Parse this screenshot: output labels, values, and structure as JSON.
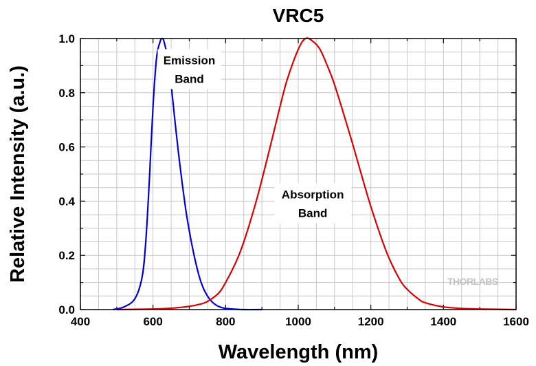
{
  "chart_data": {
    "type": "line",
    "title": "VRC5",
    "xlabel": "Wavelength (nm)",
    "ylabel": "Relative Intensity (a.u.)",
    "xlim": [
      400,
      1600
    ],
    "ylim": [
      0,
      1.0
    ],
    "x_ticks": [
      "400",
      "600",
      "800",
      "1000",
      "1200",
      "1400",
      "1600"
    ],
    "y_ticks": [
      "0.0",
      "0.2",
      "0.4",
      "0.6",
      "0.8",
      "1.0"
    ],
    "grid": true,
    "series": [
      {
        "color": "#0000dd",
        "x": [
          490,
          520,
          550,
          570,
          580,
          590,
          600,
          610,
          620,
          625,
          630,
          640,
          650,
          660,
          670,
          680,
          690,
          700,
          710,
          720,
          730,
          740,
          750,
          760,
          770,
          780,
          790,
          800,
          820,
          850,
          900
        ],
        "y": [
          0.0,
          0.01,
          0.04,
          0.12,
          0.25,
          0.48,
          0.75,
          0.93,
          0.99,
          1.0,
          0.99,
          0.93,
          0.83,
          0.7,
          0.58,
          0.47,
          0.37,
          0.29,
          0.22,
          0.16,
          0.11,
          0.075,
          0.05,
          0.032,
          0.02,
          0.012,
          0.007,
          0.004,
          0.002,
          0.0,
          0.0
        ]
      },
      {
        "color": "#dd0000",
        "x": [
          500,
          600,
          650,
          700,
          730,
          750,
          780,
          800,
          830,
          850,
          880,
          900,
          930,
          950,
          970,
          1000,
          1020,
          1040,
          1060,
          1080,
          1100,
          1130,
          1150,
          1180,
          1200,
          1230,
          1250,
          1280,
          1300,
          1330,
          1350,
          1400,
          1450,
          1500,
          1550,
          1600
        ],
        "y": [
          0.0,
          0.002,
          0.005,
          0.012,
          0.02,
          0.03,
          0.06,
          0.1,
          0.18,
          0.25,
          0.38,
          0.48,
          0.64,
          0.75,
          0.85,
          0.96,
          1.0,
          0.99,
          0.96,
          0.9,
          0.83,
          0.7,
          0.61,
          0.47,
          0.38,
          0.26,
          0.19,
          0.11,
          0.075,
          0.04,
          0.025,
          0.01,
          0.004,
          0.002,
          0.001,
          0.0
        ]
      }
    ],
    "annotations": [
      {
        "lines": [
          "Emission",
          "Band"
        ],
        "x": 700,
        "y": 0.905
      },
      {
        "lines": [
          "Absorption",
          "Band"
        ],
        "x": 1040,
        "y": 0.41
      }
    ],
    "watermark": "THORLABS"
  }
}
